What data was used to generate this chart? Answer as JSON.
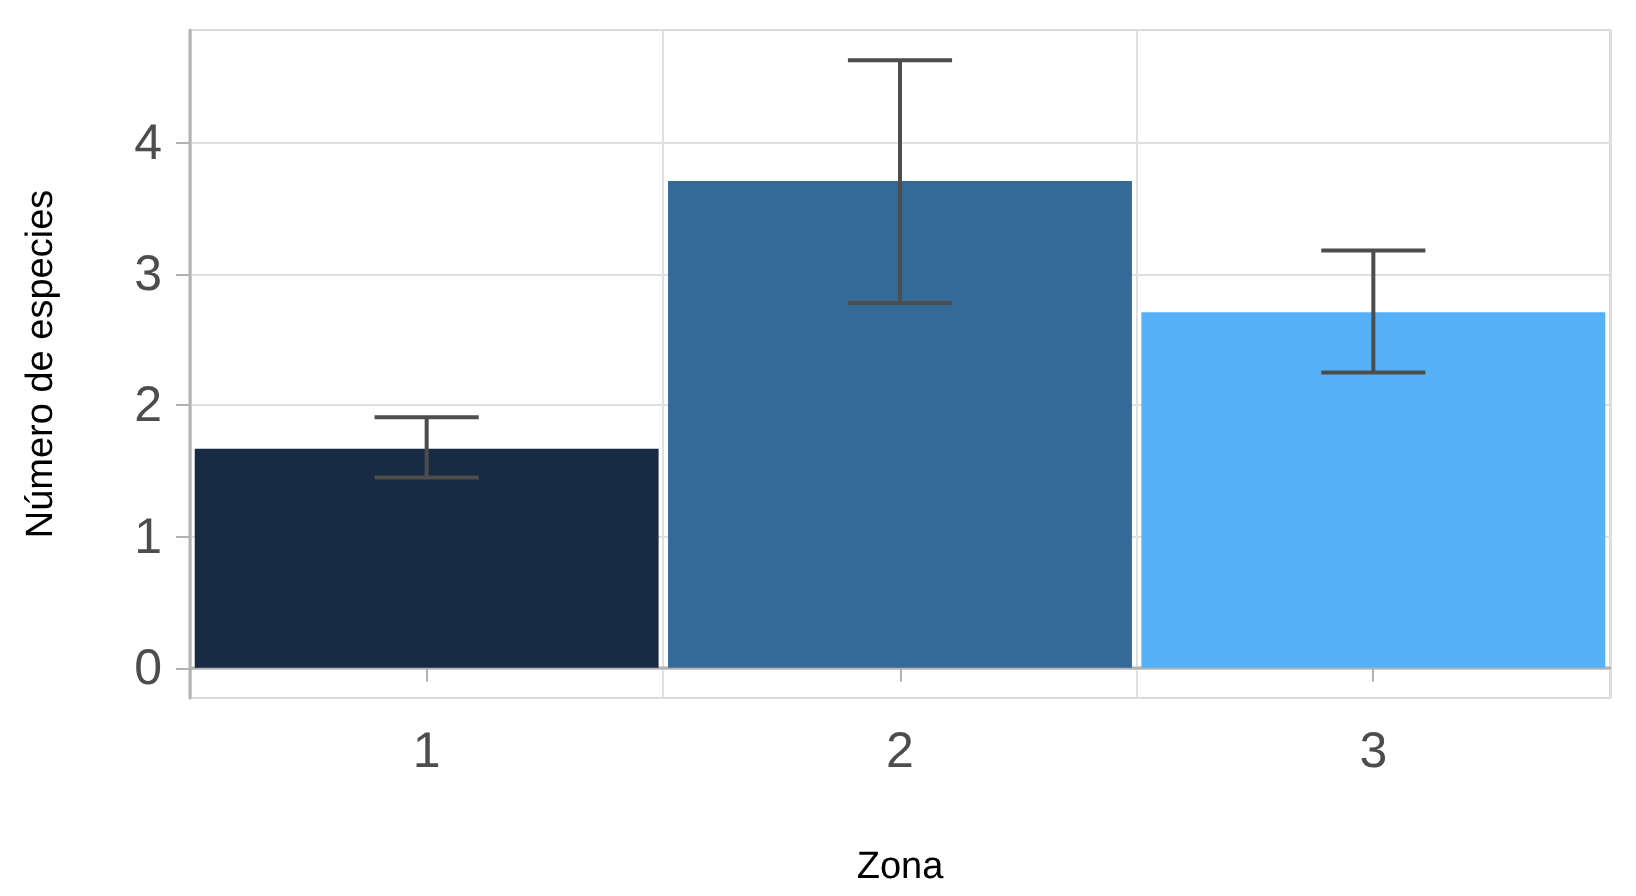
{
  "chart_data": {
    "type": "bar",
    "xlabel": "Zona",
    "ylabel": "Número de especies",
    "categories": [
      "1",
      "2",
      "3"
    ],
    "values": [
      1.67,
      3.71,
      2.71
    ],
    "colors": [
      "#172b43",
      "#336a98",
      "#56b1f7"
    ],
    "errors": [
      [
        1.45,
        1.91
      ],
      [
        2.78,
        4.63
      ],
      [
        2.25,
        3.18
      ]
    ],
    "ylim": [
      -0.23,
      4.86
    ],
    "yticks": [
      0,
      1,
      2,
      3,
      4
    ],
    "grid": true
  }
}
